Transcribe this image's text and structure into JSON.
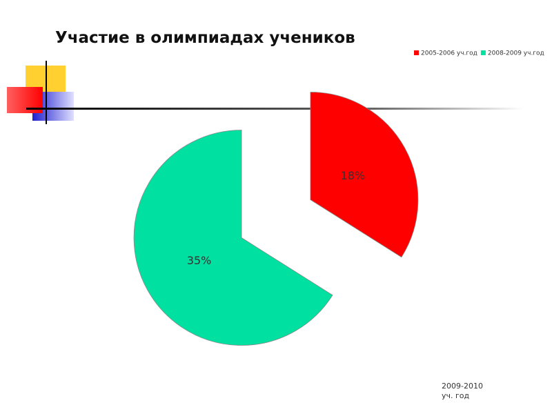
{
  "chart_data": {
    "type": "pie",
    "title": "Участие в олимпиадах учеников",
    "categories": [
      "2005-2006 уч.год",
      "2008-2009 уч.год"
    ],
    "values": [
      18,
      35
    ],
    "value_labels": [
      "18%",
      "35%"
    ],
    "colors": [
      "#ff0000",
      "#00e0a0"
    ],
    "legend": "top-right",
    "exploded": true,
    "annotation": "2009-2010 уч. год"
  }
}
